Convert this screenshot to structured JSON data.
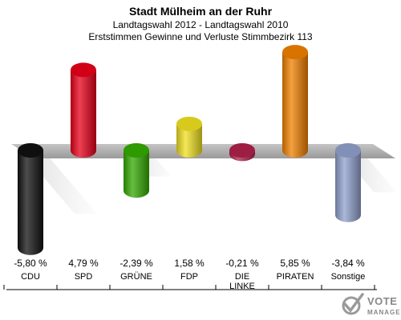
{
  "header": {
    "title": "Stadt Mülheim an der Ruhr",
    "subtitle1": "Landtagswahl 2012 - Landtagswahl 2010",
    "subtitle2": "Erststimmen Gewinne und Verluste Stimmbezirk 113"
  },
  "chart_data": {
    "type": "bar",
    "title": "Stadt Mülheim an der Ruhr",
    "subtitle": "Landtagswahl 2012 - Landtagswahl 2010 / Erststimmen Gewinne und Verluste Stimmbezirk 113",
    "categories": [
      "CDU",
      "SPD",
      "GRÜNE",
      "FDP",
      "DIE LINKE",
      "PIRATEN",
      "Sonstige"
    ],
    "category_labels": [
      [
        "CDU"
      ],
      [
        "SPD"
      ],
      [
        "GRÜNE"
      ],
      [
        "FDP"
      ],
      [
        "DIE",
        "LINKE"
      ],
      [
        "PIRATEN"
      ],
      [
        "Sonstige"
      ]
    ],
    "values": [
      -5.8,
      4.79,
      -2.39,
      1.58,
      -0.21,
      5.85,
      -3.84
    ],
    "value_labels": [
      "-5,80 %",
      "4,79 %",
      "-2,39 %",
      "1,58 %",
      "-0,21 %",
      "5,85 %",
      "-3,84 %"
    ],
    "colors": [
      "#111111",
      "#e8001a",
      "#33aa00",
      "#f0e020",
      "#b0204a",
      "#f08000",
      "#90a0cc"
    ],
    "ylim": [
      -6.5,
      6.5
    ],
    "baseline_color": "#a8a8a8"
  },
  "branding": {
    "word1": "VOTE",
    "word2": "MANAGER"
  }
}
